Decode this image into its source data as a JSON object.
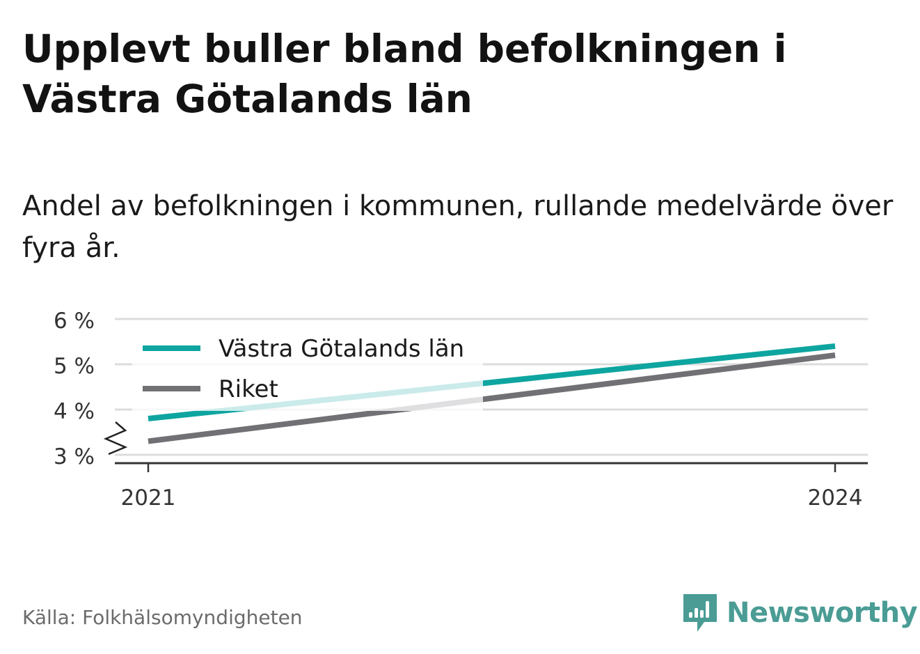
{
  "title": "Upplevt buller bland befolkningen i Västra Götalands län",
  "subtitle": "Andel av befolkningen i kommunen, rullande medelvärde över fyra år.",
  "source": "Källa: Folkhälsomyndigheten",
  "brand": {
    "name": "Newsworthy",
    "icon": "newsworthy-logo-icon",
    "color": "#4a9c95"
  },
  "chart_data": {
    "type": "line",
    "x": [
      "2021",
      "2024"
    ],
    "xticks": [
      "2021",
      "2024"
    ],
    "ylim": [
      3,
      6
    ],
    "yticks": [
      3,
      4,
      5,
      6
    ],
    "ytick_labels": [
      "3 %",
      "4 %",
      "5 %",
      "6 %"
    ],
    "y_axis_break": true,
    "grid": true,
    "legend_position": "top-left",
    "series": [
      {
        "name": "Västra Götalands län",
        "color": "#0ea5a0",
        "values": [
          3.8,
          5.4
        ]
      },
      {
        "name": "Riket",
        "color": "#707075",
        "values": [
          3.3,
          5.2
        ]
      }
    ]
  }
}
